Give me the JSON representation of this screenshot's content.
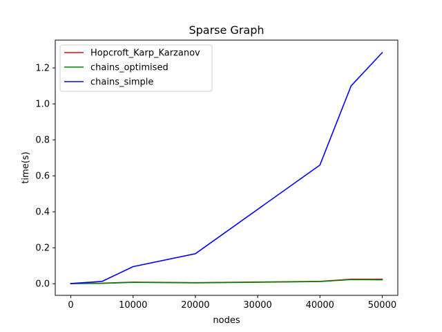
{
  "chart_data": {
    "type": "line",
    "title": "Sparse Graph",
    "xlabel": "nodes",
    "ylabel": "time(s)",
    "xlim": [
      -2500,
      52500
    ],
    "ylim": [
      -0.0645,
      1.3545
    ],
    "xticks": [
      0,
      10000,
      20000,
      30000,
      40000,
      50000
    ],
    "xtick_labels": [
      "0",
      "10000",
      "20000",
      "30000",
      "40000",
      "50000"
    ],
    "yticks": [
      0.0,
      0.2,
      0.4,
      0.6,
      0.8,
      1.0,
      1.2
    ],
    "ytick_labels": [
      "0.0",
      "0.2",
      "0.4",
      "0.6",
      "0.8",
      "1.0",
      "1.2"
    ],
    "grid": false,
    "legend_position": "top-left",
    "series": [
      {
        "name": "Hopcroft_Karp_Karzanov",
        "color": "#ff0000",
        "x": [
          0,
          5000,
          10000,
          20000,
          40000,
          45000,
          50000
        ],
        "y": [
          0.001,
          0.003,
          0.009,
          0.006,
          0.013,
          0.025,
          0.025
        ]
      },
      {
        "name": "chains_optimised",
        "color": "#008000",
        "x": [
          0,
          5000,
          10000,
          20000,
          40000,
          45000,
          50000
        ],
        "y": [
          0.001,
          0.002,
          0.008,
          0.005,
          0.012,
          0.023,
          0.022
        ]
      },
      {
        "name": "chains_simple",
        "color": "#0000ff",
        "x": [
          0,
          5000,
          10000,
          20000,
          40000,
          45000,
          50000
        ],
        "y": [
          0.001,
          0.013,
          0.095,
          0.167,
          0.66,
          1.1,
          1.285
        ]
      }
    ]
  }
}
